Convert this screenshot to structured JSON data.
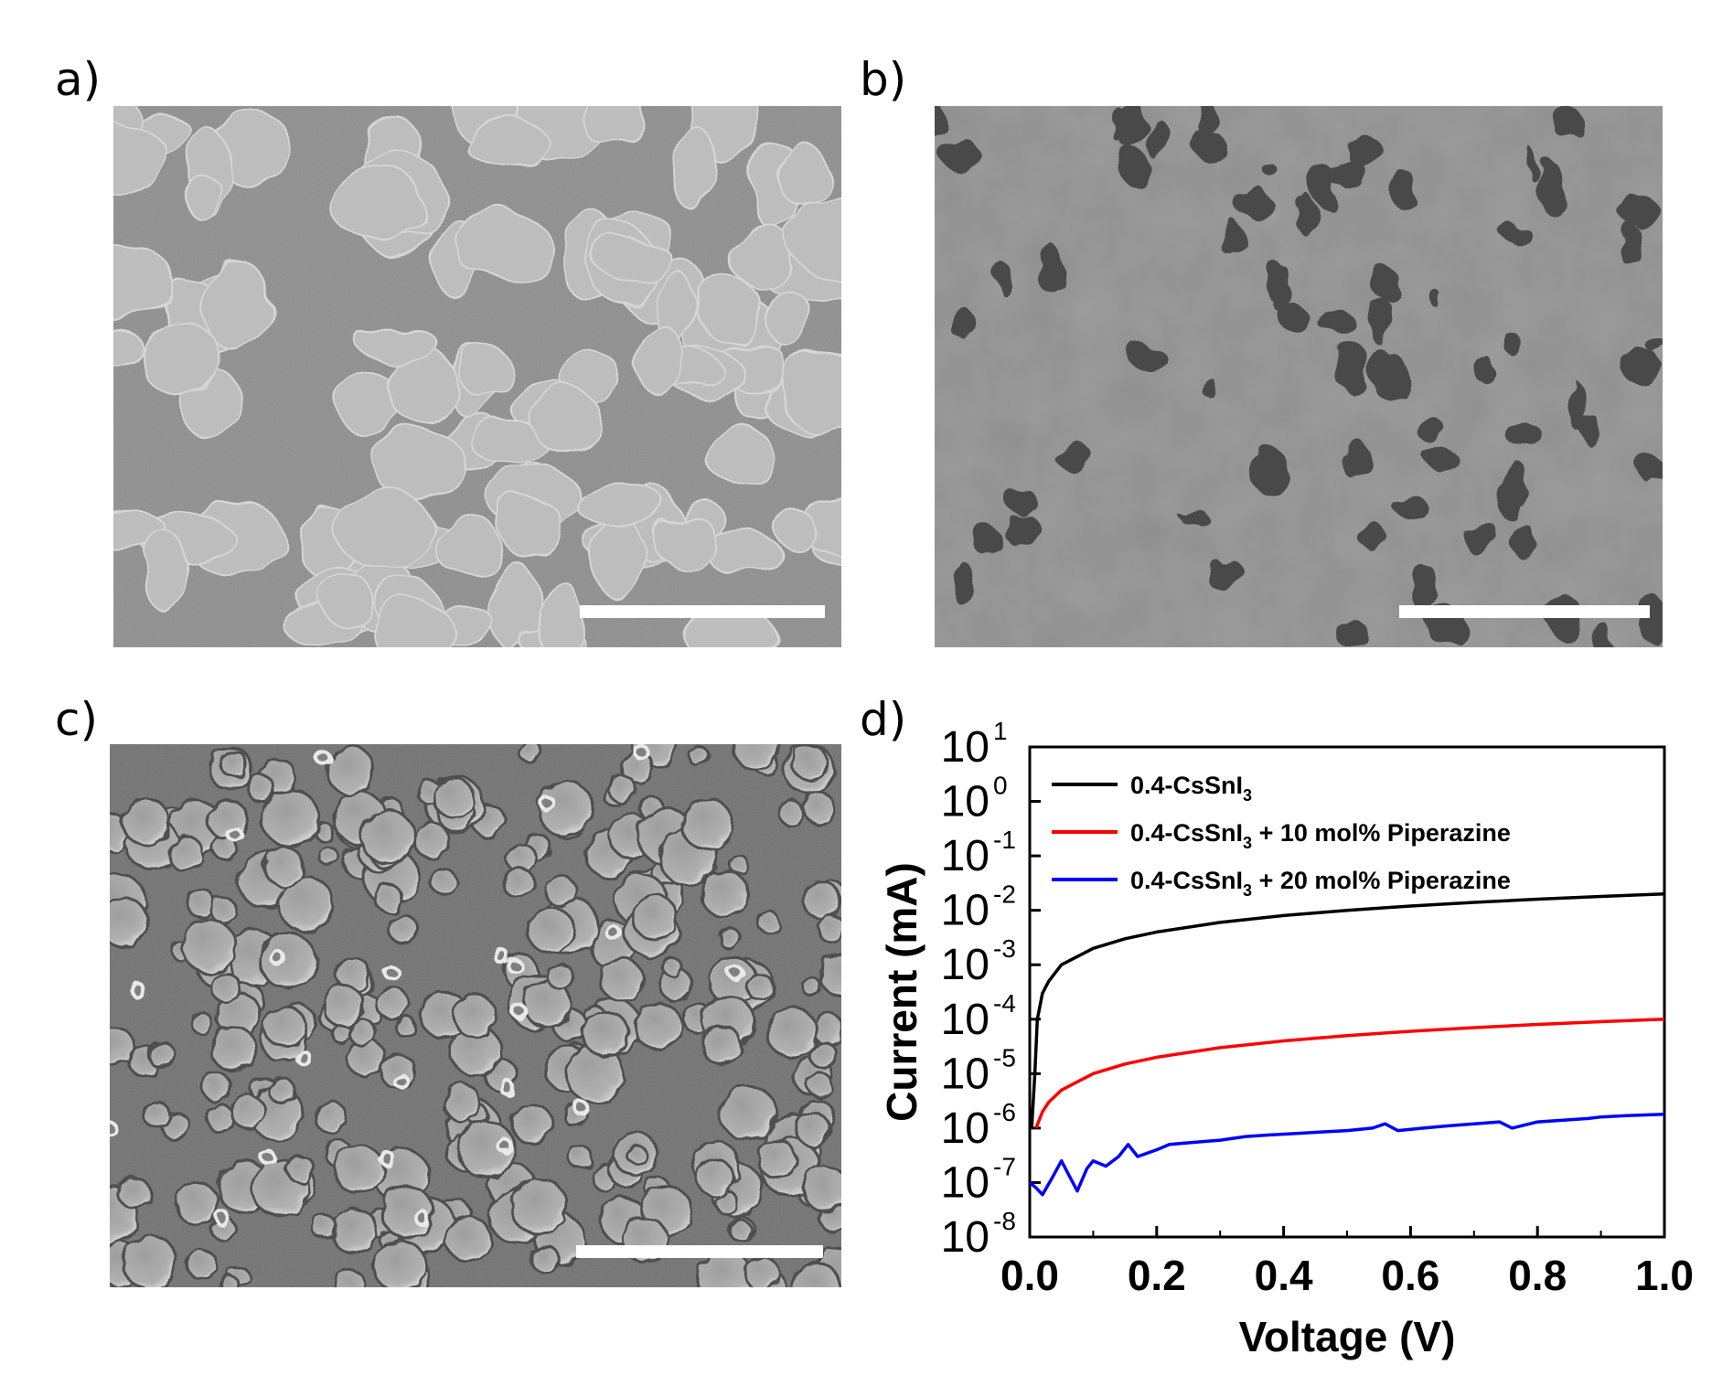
{
  "panels": {
    "a": {
      "label": "a)"
    },
    "b": {
      "label": "b)"
    },
    "c": {
      "label": "c)"
    },
    "d": {
      "label": "d)"
    }
  },
  "colors": {
    "sem_a_background": "#8a8a8a",
    "sem_a_grain": "#bdbdbd",
    "sem_b_background": "#8e8e8e",
    "sem_b_pore": "#4a4a4a",
    "sem_c_background": "#6e6e6e",
    "sem_c_grain": "#a8a8a8",
    "scale_bar": "#ffffff"
  },
  "chart_data": {
    "type": "line",
    "xlabel": "Voltage (V)",
    "ylabel": "Current (mA)",
    "xlim": [
      0.0,
      1.0
    ],
    "ylim_log10": [
      -8,
      1
    ],
    "yscale": "log",
    "x_ticks": [
      "0.0",
      "0.2",
      "0.4",
      "0.6",
      "0.8",
      "1.0"
    ],
    "x_tick_values": [
      0.0,
      0.2,
      0.4,
      0.6,
      0.8,
      1.0
    ],
    "y_tick_exponents": [
      1,
      0,
      -1,
      -2,
      -3,
      -4,
      -5,
      -6,
      -7,
      -8
    ],
    "y_tick_base": "10",
    "legend_position": "top-left",
    "series": [
      {
        "name": "0.4-CsSnI3",
        "legend": {
          "pre": "0.4-CsSnI",
          "sub": "3",
          "post": ""
        },
        "color": "#000000",
        "x": [
          0.003,
          0.008,
          0.012,
          0.02,
          0.03,
          0.05,
          0.1,
          0.15,
          0.2,
          0.3,
          0.4,
          0.5,
          0.6,
          0.7,
          0.8,
          0.9,
          1.0
        ],
        "y": [
          1e-06,
          1e-05,
          0.0001,
          0.0003,
          0.0005,
          0.001,
          0.002,
          0.003,
          0.004,
          0.006,
          0.008,
          0.01,
          0.012,
          0.014,
          0.016,
          0.018,
          0.02
        ]
      },
      {
        "name": "0.4-CsSnI3 + 10 mol% Piperazine",
        "legend": {
          "pre": "0.4-CsSnI",
          "sub": "3",
          "post": " + 10 mol% Piperazine"
        },
        "color": "#ff0000",
        "x": [
          0.01,
          0.02,
          0.03,
          0.05,
          0.1,
          0.15,
          0.2,
          0.3,
          0.4,
          0.5,
          0.6,
          0.7,
          0.8,
          0.9,
          1.0
        ],
        "y": [
          1e-06,
          2e-06,
          3e-06,
          5e-06,
          1e-05,
          1.5e-05,
          2e-05,
          3e-05,
          4e-05,
          5e-05,
          6e-05,
          7e-05,
          8e-05,
          9e-05,
          0.0001
        ]
      },
      {
        "name": "0.4-CsSnI3 + 20 mol% Piperazine",
        "legend": {
          "pre": "0.4-CsSnI",
          "sub": "3",
          "post": " + 20 mol% Piperazine"
        },
        "color": "#0000ff",
        "x": [
          0.0,
          0.01,
          0.02,
          0.035,
          0.05,
          0.06,
          0.075,
          0.09,
          0.1,
          0.12,
          0.14,
          0.155,
          0.17,
          0.2,
          0.22,
          0.26,
          0.3,
          0.34,
          0.38,
          0.42,
          0.46,
          0.5,
          0.54,
          0.56,
          0.58,
          0.62,
          0.66,
          0.7,
          0.74,
          0.76,
          0.8,
          0.84,
          0.88,
          0.9,
          0.94,
          1.0
        ],
        "y": [
          1e-07,
          8e-08,
          6e-08,
          1.2e-07,
          2.5e-07,
          1.5e-07,
          7e-08,
          1.8e-07,
          2.5e-07,
          2e-07,
          3e-07,
          5e-07,
          3e-07,
          4e-07,
          5e-07,
          5.5e-07,
          6e-07,
          7e-07,
          7.5e-07,
          8e-07,
          8.5e-07,
          9e-07,
          1e-06,
          1.2e-06,
          9e-07,
          1e-06,
          1.1e-06,
          1.2e-06,
          1.3e-06,
          1e-06,
          1.3e-06,
          1.4e-06,
          1.5e-06,
          1.6e-06,
          1.7e-06,
          1.8e-06
        ]
      }
    ]
  }
}
